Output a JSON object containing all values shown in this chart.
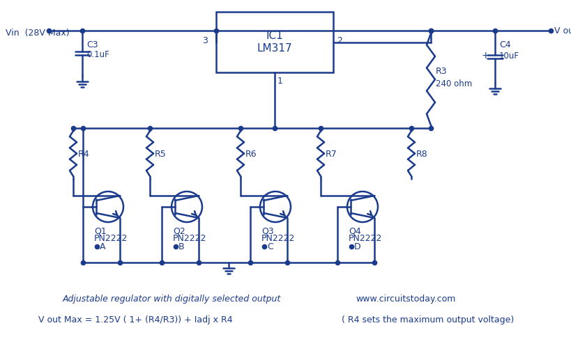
{
  "bg_color": "#ffffff",
  "line_color": "#1a3a8c",
  "text_color": "#1a3a8c",
  "title_text": "Adjustable regulator with digitally selected output",
  "website_text": "www.circuitstoday.com",
  "formula_text": "V out Max = 1.25V ( 1+ (R4/R3)) + Iadj x R4",
  "formula_note": "( R4 sets the maximum output voltage)",
  "fig_width": 8.19,
  "fig_height": 4.85,
  "dpi": 100
}
